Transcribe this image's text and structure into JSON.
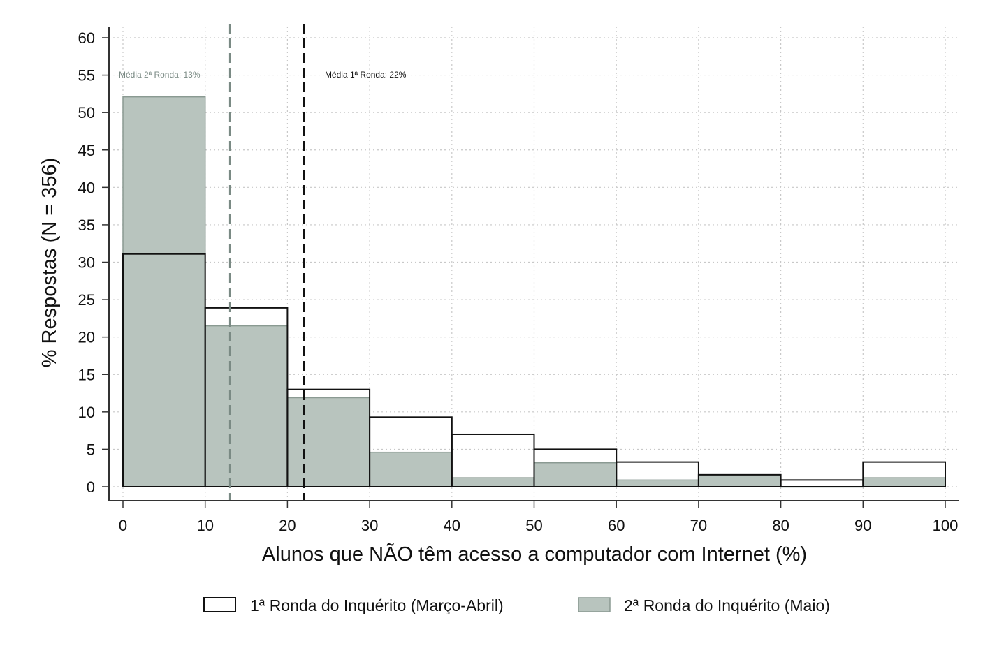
{
  "chart_data": {
    "type": "bar",
    "title": "",
    "xlabel": "Alunos que NÃO têm acesso a computador com Internet (%)",
    "ylabel": "% Respostas (N = 356)",
    "xlim": [
      0,
      100
    ],
    "ylim": [
      0,
      60
    ],
    "x_ticks": [
      "0",
      "10",
      "20",
      "30",
      "40",
      "50",
      "60",
      "70",
      "80",
      "90",
      "100"
    ],
    "y_ticks": [
      "0",
      "5",
      "10",
      "15",
      "20",
      "25",
      "30",
      "35",
      "40",
      "45",
      "50",
      "55",
      "60"
    ],
    "bins": [
      [
        0,
        10
      ],
      [
        10,
        20
      ],
      [
        20,
        30
      ],
      [
        30,
        40
      ],
      [
        40,
        50
      ],
      [
        50,
        60
      ],
      [
        60,
        70
      ],
      [
        70,
        80
      ],
      [
        80,
        90
      ],
      [
        90,
        100
      ]
    ],
    "grid": true,
    "legend_position": "bottom",
    "series": [
      {
        "name": "1ª Ronda do Inquérito (Março-Abril)",
        "style": "outline",
        "color": "#111111",
        "values": [
          31.1,
          23.9,
          13.0,
          9.3,
          7.0,
          5.0,
          3.3,
          1.6,
          0.9,
          3.3
        ]
      },
      {
        "name": "2ª Ronda do Inquérito (Maio)",
        "style": "filled",
        "color": "#b8c4be",
        "edge_color": "#8a9a92",
        "values": [
          52.1,
          21.5,
          11.9,
          4.6,
          1.2,
          3.2,
          0.9,
          1.6,
          0.0,
          1.2
        ]
      }
    ],
    "annotations": [
      {
        "text": "Média 1ª Ronda:  22%",
        "x": 22,
        "color": "#111111"
      },
      {
        "text": "Média 2ª Ronda:  13%",
        "x": 13,
        "color": "#7a8a84"
      }
    ]
  }
}
